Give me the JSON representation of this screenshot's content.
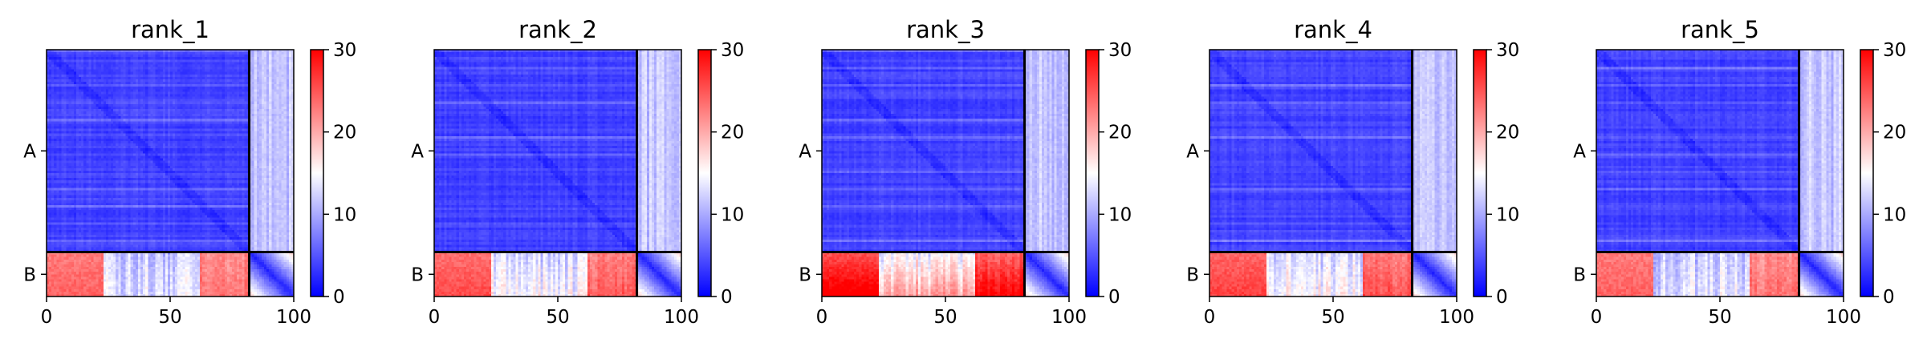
{
  "chart_data": {
    "type": "heatmap",
    "panels": [
      {
        "title": "rank_1",
        "b_intensity": 0.8,
        "b_bottom_boost": 0.05
      },
      {
        "title": "rank_2",
        "b_intensity": 0.82,
        "b_bottom_boost": 0.08
      },
      {
        "title": "rank_3",
        "b_intensity": 0.88,
        "b_bottom_boost": 0.22
      },
      {
        "title": "rank_4",
        "b_intensity": 0.84,
        "b_bottom_boost": 0.08
      },
      {
        "title": "rank_5",
        "b_intensity": 0.8,
        "b_bottom_boost": 0.05
      }
    ],
    "x_ticks": [
      "0",
      "50",
      "100"
    ],
    "x_tick_values": [
      0,
      50,
      100
    ],
    "xlim": [
      0,
      100
    ],
    "y_ticks": [
      "A",
      "B"
    ],
    "chain_boundary": 82,
    "colorbar": {
      "ticks": [
        "0",
        "10",
        "20",
        "30"
      ],
      "tick_values": [
        0,
        10,
        20,
        30
      ],
      "range": [
        0,
        30
      ],
      "colormap": "bwr"
    },
    "colors": {
      "low": "#0000ff",
      "mid": "#ffffff",
      "high": "#ff0000",
      "boundary": "#000000"
    }
  }
}
